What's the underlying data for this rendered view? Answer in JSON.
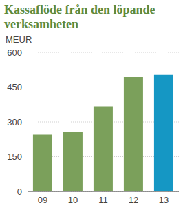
{
  "chart_data": {
    "type": "bar",
    "title": "Kassaflöde från den löpande verksamheten",
    "y_label": "MEUR",
    "categories": [
      "09",
      "10",
      "11",
      "12",
      "13"
    ],
    "values": [
      245,
      258,
      367,
      493,
      503
    ],
    "colors": [
      "#7ba05b",
      "#7ba05b",
      "#7ba05b",
      "#7ba05b",
      "#1597c4"
    ],
    "ylim": [
      0,
      600
    ],
    "yticks": [
      0,
      150,
      300,
      450,
      600
    ],
    "grid": true
  }
}
